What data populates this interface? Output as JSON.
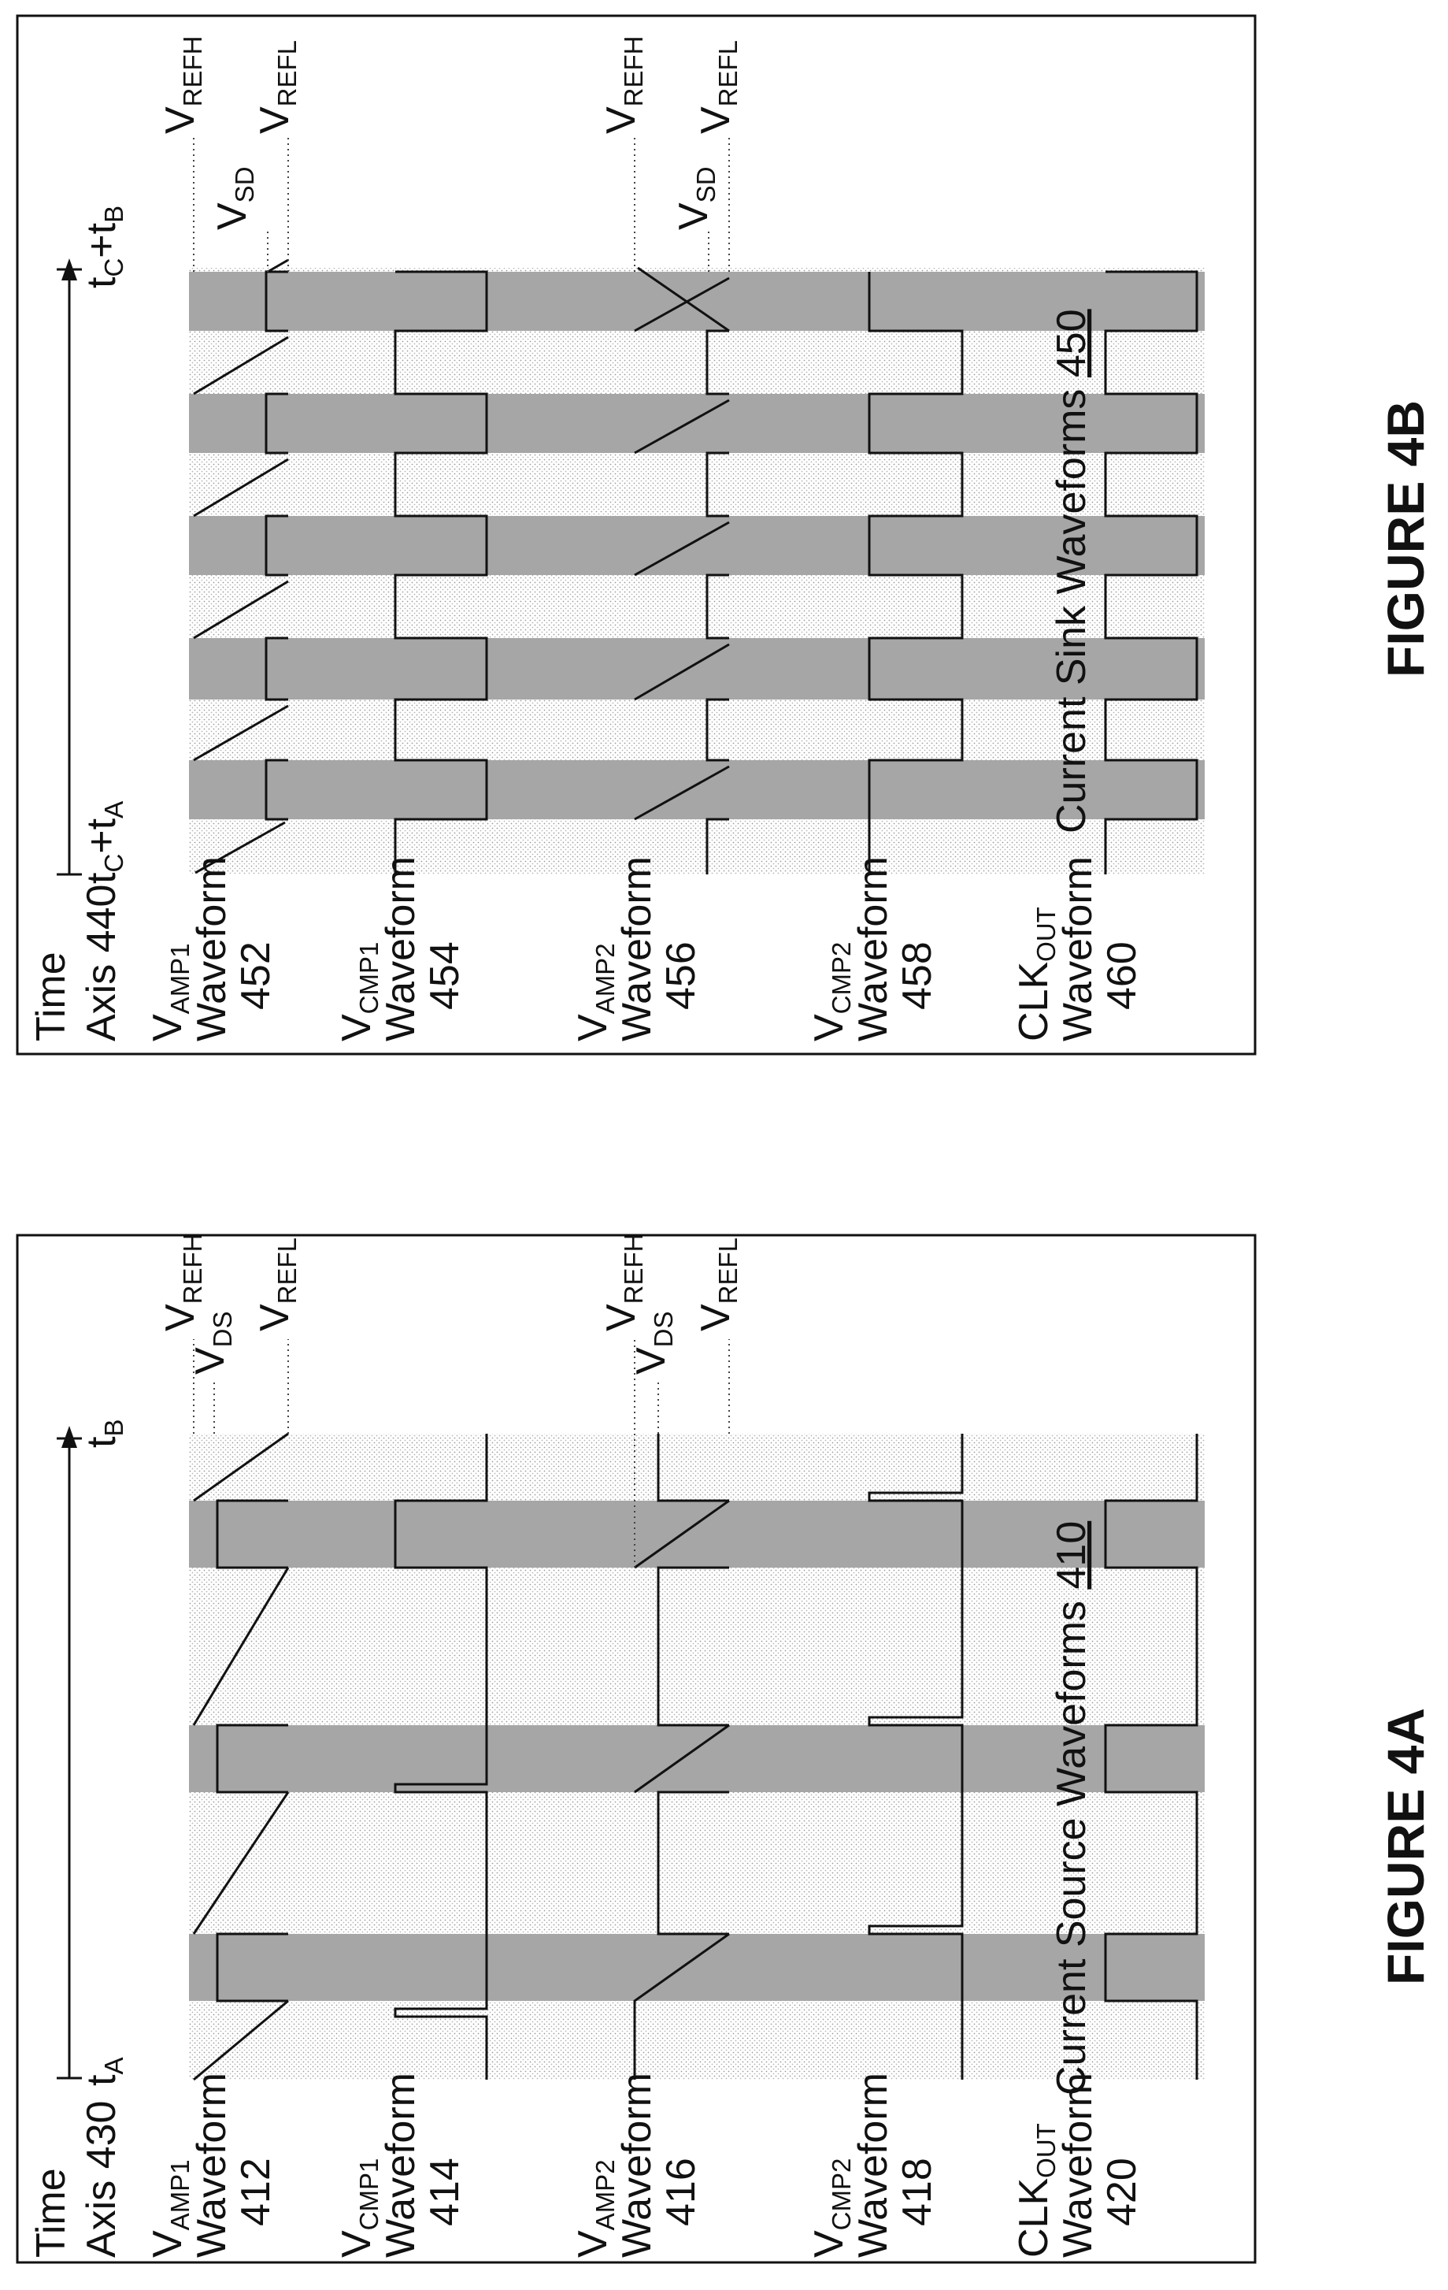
{
  "colors": {
    "frame": "#111111",
    "light_band": "#e6e6e6",
    "dark_band": "#a2a2a2",
    "trace": "#111111",
    "ref_line": "#333333"
  },
  "fig4a": {
    "figure_title": "FIGURE 4A",
    "caption": "Current Source Waveforms ",
    "caption_ref": "410",
    "time_axis": {
      "word": "Time",
      "line2": "Axis 430",
      "start_main": "t",
      "start_sub": "A",
      "end_main": "t",
      "end_sub": "B"
    },
    "rows": [
      {
        "sym_main": "V",
        "sym_sub": "AMP1",
        "line2": "Waveform",
        "line3": "412"
      },
      {
        "sym_main": "V",
        "sym_sub": "CMP1",
        "line2": "Waveform",
        "line3": "414"
      },
      {
        "sym_main": "V",
        "sym_sub": "AMP2",
        "line2": "Waveform",
        "line3": "416"
      },
      {
        "sym_main": "V",
        "sym_sub": "CMP2",
        "line2": "Waveform",
        "line3": "418"
      },
      {
        "sym_main": "CLK",
        "sym_sub": "OUT",
        "line2": "Waveform",
        "line3": "420"
      }
    ],
    "refs_top": [
      {
        "main": "V",
        "sub": "REFH"
      },
      {
        "main": "V",
        "sub": "DS"
      },
      {
        "main": "V",
        "sub": "REFL"
      }
    ],
    "refs_mid": [
      {
        "main": "V",
        "sub": "REFH"
      },
      {
        "main": "V",
        "sub": "DS"
      },
      {
        "main": "V",
        "sub": "REFL"
      }
    ]
  },
  "fig4b": {
    "figure_title": "FIGURE 4B",
    "caption": "Current Sink Waveforms ",
    "caption_ref": "450",
    "time_axis": {
      "word": "Time",
      "line2": "Axis 440",
      "start_main": "t",
      "start_sub1": "C",
      "start_mid": "+t",
      "start_sub2": "A",
      "end_main": "t",
      "end_sub1": "C",
      "end_mid": "+t",
      "end_sub2": "B"
    },
    "rows": [
      {
        "sym_main": "V",
        "sym_sub": "AMP1",
        "line2": "Waveform",
        "line3": "452"
      },
      {
        "sym_main": "V",
        "sym_sub": "CMP1",
        "line2": "Waveform",
        "line3": "454"
      },
      {
        "sym_main": "V",
        "sym_sub": "AMP2",
        "line2": "Waveform",
        "line3": "456"
      },
      {
        "sym_main": "V",
        "sym_sub": "CMP2",
        "line2": "Waveform",
        "line3": "458"
      },
      {
        "sym_main": "CLK",
        "sym_sub": "OUT",
        "line2": "Waveform",
        "line3": "460"
      }
    ],
    "refs_top": [
      {
        "main": "V",
        "sub": "REFH"
      },
      {
        "main": "V",
        "sub": "SD"
      },
      {
        "main": "V",
        "sub": "REFL"
      }
    ],
    "refs_mid": [
      {
        "main": "V",
        "sub": "REFH"
      },
      {
        "main": "V",
        "sub": "SD"
      },
      {
        "main": "V",
        "sub": "REFL"
      }
    ]
  }
}
